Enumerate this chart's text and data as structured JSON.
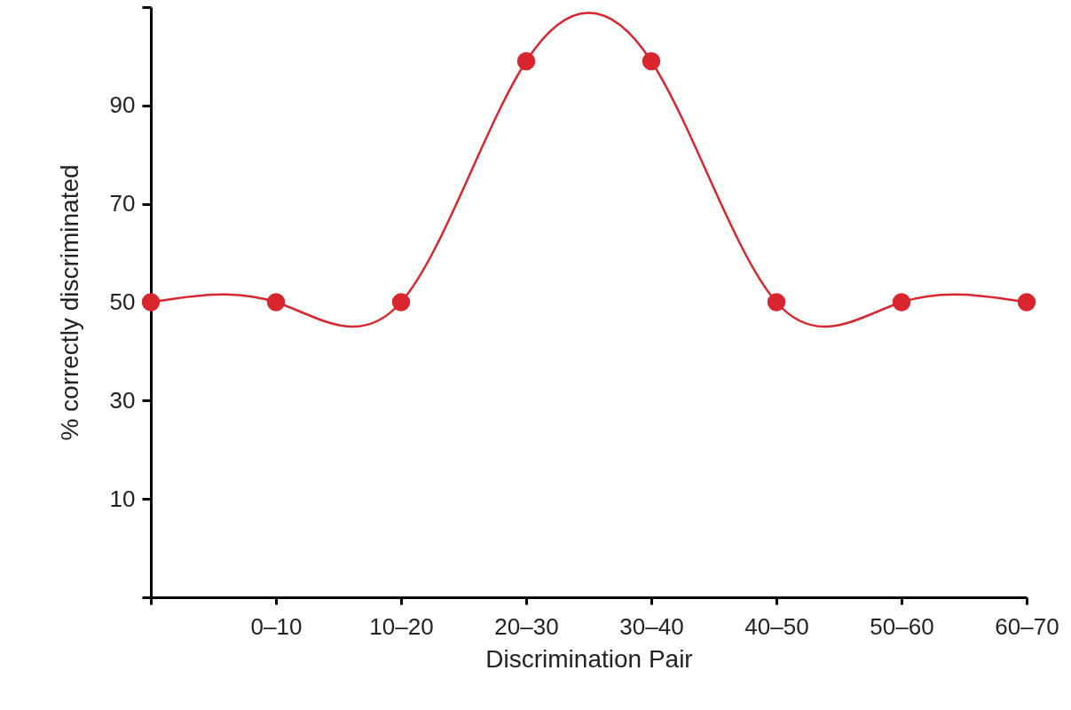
{
  "chart_data": {
    "type": "line",
    "xlabel": "Discrimination Pair",
    "ylabel": "% correctly discriminated",
    "categories": [
      null,
      "0–10",
      "10–20",
      "20–30",
      "30–40",
      "40–50",
      "50–60",
      "60–70"
    ],
    "values": [
      50,
      50,
      50,
      99,
      99,
      50,
      50,
      50
    ],
    "color": "#d9262e",
    "marker": "circle",
    "ylim": [
      -10,
      110
    ],
    "yticks": [
      {
        "value": -10,
        "label": null
      },
      10,
      30,
      50,
      70,
      90,
      {
        "value": 110,
        "label": null
      }
    ]
  }
}
